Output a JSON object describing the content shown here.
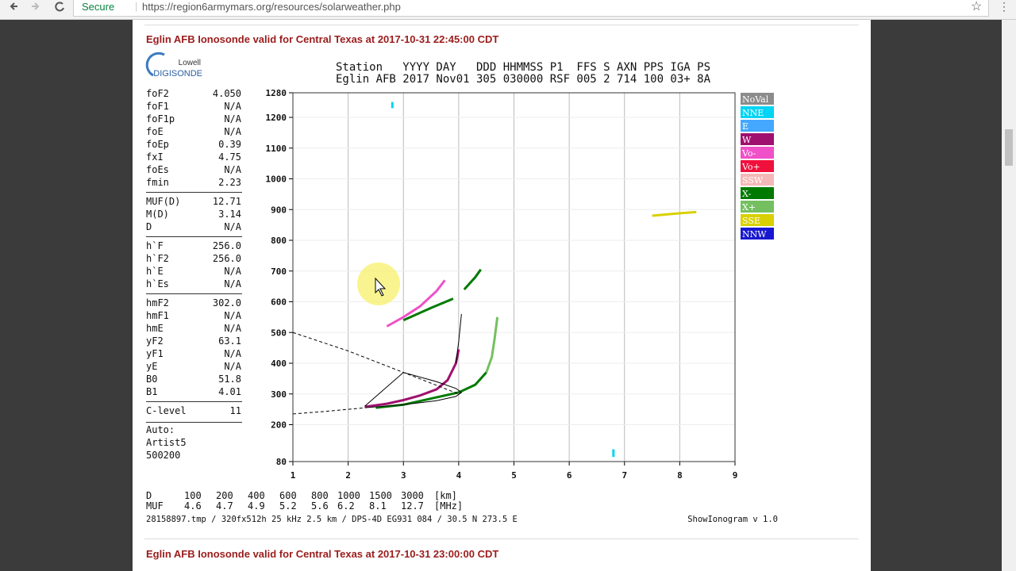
{
  "browser": {
    "secure": "Secure",
    "url": "https://region6armymars.org/resources/solarweather.php"
  },
  "sections": [
    {
      "title": "Eglin AFB Ionosonde valid for Central Texas at 2017-10-31 22:45:00 CDT",
      "logo": {
        "top": "Lowell",
        "bottom": "DIGISONDE"
      },
      "params": [
        [
          [
            "foF2",
            "4.050"
          ],
          [
            "foF1",
            "N/A"
          ],
          [
            "foF1p",
            "N/A"
          ],
          [
            "foE",
            "N/A"
          ],
          [
            "foEp",
            "0.39"
          ],
          [
            "fxI",
            "4.75"
          ],
          [
            "foEs",
            "N/A"
          ],
          [
            "fmin",
            "2.23"
          ]
        ],
        [
          [
            "MUF(D)",
            "12.71"
          ],
          [
            "M(D)",
            "3.14"
          ],
          [
            "D",
            "N/A"
          ]
        ],
        [
          [
            "h`F",
            "256.0"
          ],
          [
            "h`F2",
            "256.0"
          ],
          [
            "h`E",
            "N/A"
          ],
          [
            "h`Es",
            "N/A"
          ]
        ],
        [
          [
            "hmF2",
            "302.0"
          ],
          [
            "hmF1",
            "N/A"
          ],
          [
            "hmE",
            "N/A"
          ],
          [
            "yF2",
            "63.1"
          ],
          [
            "yF1",
            "N/A"
          ],
          [
            "yE",
            "N/A"
          ],
          [
            "B0",
            "51.8"
          ],
          [
            "B1",
            "4.01"
          ]
        ],
        [
          [
            "C-level",
            "11"
          ]
        ]
      ],
      "auto": [
        "Auto:",
        "Artist5",
        "500200"
      ],
      "chart_data": {
        "type": "ionogram",
        "header": [
          "Station   YYYY DAY   DDD HHMMSS P1  FFS S AXN PPS IGA PS",
          "Eglin AFB 2017 Nov01 305 030000 RSF 005 2 714 100 03+ 8A"
        ],
        "xlim": [
          1,
          9
        ],
        "xticks": [
          1,
          2,
          3,
          4,
          5,
          6,
          7,
          8,
          9
        ],
        "ylim": [
          80,
          1280
        ],
        "yticks": [
          80,
          200,
          300,
          400,
          500,
          600,
          700,
          800,
          900,
          1000,
          1100,
          1200,
          1280
        ],
        "grid": true,
        "series": [
          {
            "name": "NoVal",
            "color": "#8c8c8c",
            "x": [],
            "y": []
          },
          {
            "name": "NNE",
            "color": "#00d4f4",
            "x": [
              2.8,
              2.8,
              null,
              6.8,
              6.8
            ],
            "y": [
              1230,
              1250,
              null,
              95,
              120
            ]
          },
          {
            "name": "E",
            "color": "#44a8ff",
            "x": [],
            "y": []
          },
          {
            "name": "W",
            "color": "#a0106e",
            "x": [
              2.3,
              2.7,
              3.0,
              3.3,
              3.6,
              3.8,
              3.95,
              4.0
            ],
            "y": [
              258,
              268,
              280,
              295,
              315,
              345,
              400,
              445
            ]
          },
          {
            "name": "Vo-",
            "color": "#f050c8",
            "x": [
              2.7,
              3.0,
              3.3,
              3.6,
              3.75
            ],
            "y": [
              520,
              550,
              585,
              635,
              670
            ]
          },
          {
            "name": "Vo+",
            "color": "#f0103c",
            "x": [],
            "y": []
          },
          {
            "name": "SSW",
            "color": "#f4b8b8",
            "x": [],
            "y": []
          },
          {
            "name": "X-",
            "color": "#007a00",
            "x": [
              2.5,
              3.0,
              3.5,
              4.0,
              4.3,
              4.5,
              null,
              3.0,
              3.5,
              3.9,
              null,
              4.1,
              4.3,
              4.4
            ],
            "y": [
              255,
              265,
              285,
              305,
              330,
              370,
              null,
              540,
              580,
              610,
              null,
              640,
              680,
              705
            ]
          },
          {
            "name": "X+",
            "color": "#74c060",
            "x": [
              4.5,
              4.6,
              4.65,
              4.7
            ],
            "y": [
              370,
              420,
              480,
              550
            ]
          },
          {
            "name": "SSE",
            "color": "#d8d000",
            "x": [
              7.5,
              8.0,
              8.3
            ],
            "y": [
              880,
              888,
              892
            ]
          },
          {
            "name": "NNW",
            "color": "#1818d0",
            "x": [],
            "y": []
          }
        ],
        "model_curves": [
          {
            "dashed": true,
            "x": [
              1.0,
              1.5,
              2.0,
              2.3
            ],
            "y": [
              235,
              242,
              250,
              255
            ]
          },
          {
            "dashed": false,
            "x": [
              2.3,
              3.0,
              3.6,
              3.95,
              4.05,
              3.95,
              3.6,
              3.0,
              2.3
            ],
            "y": [
              255,
              265,
              278,
              292,
              305,
              318,
              340,
              370,
              260
            ]
          },
          {
            "dashed": false,
            "x": [
              3.95,
              4.0,
              4.05
            ],
            "y": [
              400,
              470,
              560
            ]
          },
          {
            "dashed": true,
            "x": [
              1.0,
              2.0,
              3.0,
              4.0
            ],
            "y": [
              500,
              440,
              370,
              300
            ]
          }
        ],
        "muf_table": [
          [
            "D",
            "100",
            "200",
            "400",
            "600",
            "800",
            "1000",
            "1500",
            "3000",
            "[km]"
          ],
          [
            "MUF",
            "4.6",
            "4.7",
            "4.9",
            "5.2",
            "5.6",
            "6.2",
            "8.1",
            "12.7",
            "[MHz]"
          ]
        ],
        "footer": "28158897.tmp / 320fx512h 25 kHz 2.5 km / DPS-4D EG931 084 / 30.5 N 273.5 E",
        "version": "ShowIonogram v 1.0"
      }
    },
    {
      "title": "Eglin AFB Ionosonde valid for Central Texas at 2017-10-31 23:00:00 CDT"
    }
  ]
}
